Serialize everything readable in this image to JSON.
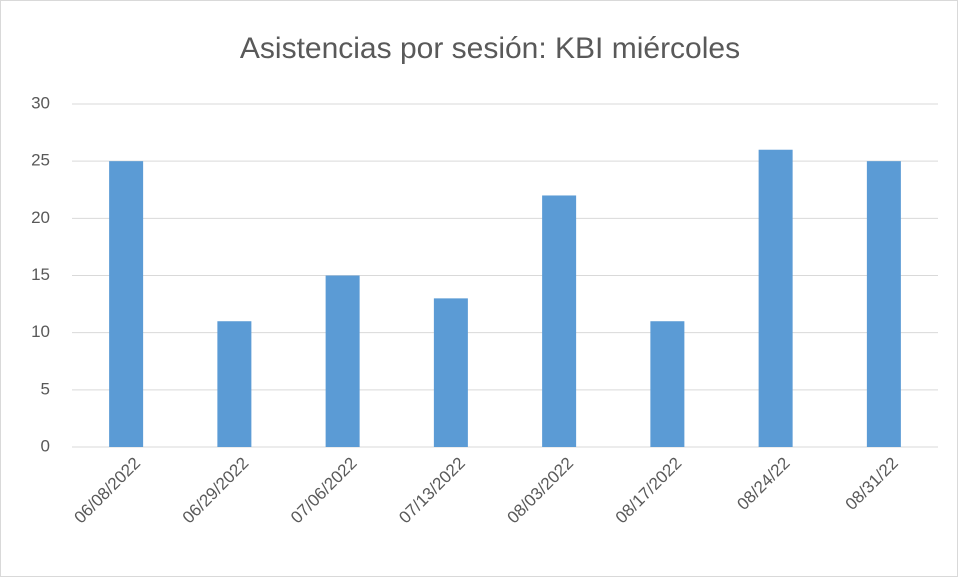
{
  "chart_data": {
    "type": "bar",
    "title": "Asistencias por sesión: KBI miércoles",
    "categories": [
      "06/08/2022",
      "06/29/2022",
      "07/06/2022",
      "07/13/2022",
      "08/03/2022",
      "08/17/2022",
      "08/24/22",
      "08/31/22"
    ],
    "values": [
      25,
      11,
      15,
      13,
      22,
      11,
      26,
      25
    ],
    "color": "#5b9bd5",
    "ylim": [
      0,
      30
    ],
    "yticks": [
      0,
      5,
      10,
      15,
      20,
      25,
      30
    ],
    "grid": true
  }
}
